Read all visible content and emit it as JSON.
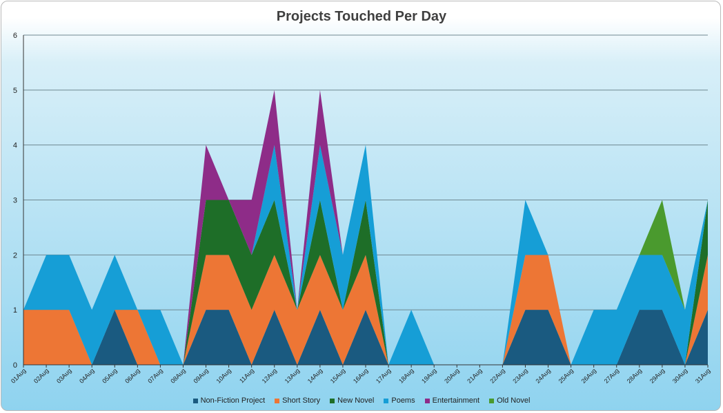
{
  "chart_data": {
    "type": "area",
    "title": "Projects Touched Per Day",
    "xlabel": "",
    "ylabel": "",
    "ylim": [
      0,
      6
    ],
    "yticks": [
      "0",
      "1",
      "2",
      "3",
      "4",
      "5",
      "6"
    ],
    "grid": true,
    "stacked": true,
    "legend_position": "bottom",
    "categories": [
      "01Aug",
      "02Aug",
      "03Aug",
      "04Aug",
      "05Aug",
      "06Aug",
      "07Aug",
      "08Aug",
      "09Aug",
      "10Aug",
      "11Aug",
      "12Aug",
      "13Aug",
      "14Aug",
      "15Aug",
      "16Aug",
      "17Aug",
      "18Aug",
      "19Aug",
      "20Aug",
      "21Aug",
      "22Aug",
      "23Aug",
      "24Aug",
      "25Aug",
      "26Aug",
      "27Aug",
      "28Aug",
      "29Aug",
      "30Aug",
      "31Aug"
    ],
    "series": [
      {
        "name": "Non-Fiction Project",
        "color": "#1a5a80",
        "values": [
          0,
          0,
          0,
          0,
          1,
          0,
          0,
          0,
          1,
          1,
          0,
          1,
          0,
          1,
          0,
          1,
          0,
          0,
          0,
          0,
          0,
          0,
          1,
          1,
          0,
          0,
          0,
          1,
          1,
          0,
          1
        ]
      },
      {
        "name": "Short Story",
        "color": "#ed7635",
        "values": [
          1,
          1,
          1,
          0,
          0,
          1,
          0,
          0,
          1,
          1,
          1,
          1,
          1,
          1,
          1,
          1,
          0,
          0,
          0,
          0,
          0,
          0,
          1,
          1,
          0,
          0,
          0,
          0,
          0,
          0,
          1
        ]
      },
      {
        "name": "New Novel",
        "color": "#1e6e28",
        "values": [
          0,
          0,
          0,
          0,
          0,
          0,
          0,
          0,
          1,
          1,
          1,
          1,
          0,
          1,
          0,
          1,
          0,
          0,
          0,
          0,
          0,
          0,
          0,
          0,
          0,
          0,
          0,
          0,
          0,
          0,
          1
        ]
      },
      {
        "name": "Poems",
        "color": "#169ed6",
        "values": [
          0,
          1,
          1,
          1,
          1,
          0,
          1,
          0,
          0,
          0,
          0,
          1,
          0,
          1,
          1,
          1,
          0,
          1,
          0,
          0,
          0,
          0,
          1,
          0,
          0,
          1,
          1,
          1,
          1,
          1,
          0
        ]
      },
      {
        "name": "Entertainment",
        "color": "#8e2c88",
        "values": [
          0,
          0,
          0,
          0,
          0,
          0,
          0,
          0,
          1,
          0,
          1,
          1,
          0,
          1,
          0,
          0,
          0,
          0,
          0,
          0,
          0,
          0,
          0,
          0,
          0,
          0,
          0,
          0,
          0,
          0,
          0
        ]
      },
      {
        "name": "Old Novel",
        "color": "#4a9a2e",
        "values": [
          0,
          0,
          0,
          0,
          0,
          0,
          0,
          0,
          0,
          0,
          0,
          0,
          0,
          0,
          0,
          0,
          0,
          0,
          0,
          0,
          0,
          0,
          0,
          0,
          0,
          0,
          0,
          0,
          1,
          0,
          0
        ]
      }
    ]
  }
}
